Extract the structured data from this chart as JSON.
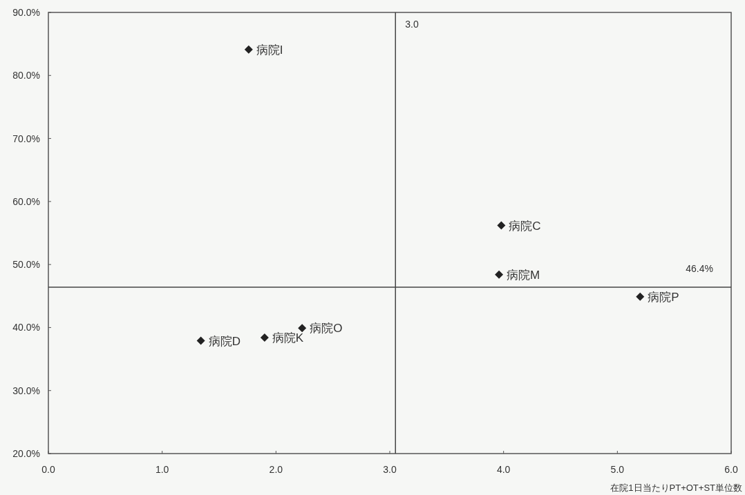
{
  "chart_data": {
    "type": "scatter",
    "xlabel": "在院1日当たりPT+OT+ST単位数",
    "x": [
      1.76,
      3.98,
      3.96,
      5.2,
      2.23,
      1.9,
      1.34
    ],
    "series": [
      {
        "color": "#222222",
        "values": [
          84.1,
          56.2,
          48.4,
          44.9,
          39.9,
          38.4,
          37.9
        ]
      }
    ],
    "marker": "diamond",
    "xlim": [
      0,
      6
    ],
    "ylim": [
      20,
      90
    ],
    "xticks": [
      {
        "value": 0,
        "label": "0.0"
      },
      {
        "value": 1,
        "label": "1.0"
      },
      {
        "value": 2,
        "label": "2.0"
      },
      {
        "value": 3,
        "label": "3.0"
      },
      {
        "value": 4,
        "label": "4.0"
      },
      {
        "value": 5,
        "label": "5.0"
      },
      {
        "value": 6,
        "label": "6.0"
      }
    ],
    "yticks": [
      {
        "value": 20,
        "label": "20.0%"
      },
      {
        "value": 30,
        "label": "30.0%"
      },
      {
        "value": 40,
        "label": "40.0%"
      },
      {
        "value": 50,
        "label": "50.0%"
      },
      {
        "value": 60,
        "label": "60.0%"
      },
      {
        "value": 70,
        "label": "70.0%"
      },
      {
        "value": 80,
        "label": "80.0%"
      },
      {
        "value": 90,
        "label": "90.0%"
      }
    ],
    "ref_lines": [
      {
        "axis": "x",
        "value": 3.05,
        "label": "3.0",
        "color": "#444444"
      },
      {
        "axis": "y",
        "value": 46.4,
        "label": "46.4%",
        "color": "#444444"
      }
    ],
    "annotations": [
      {
        "text": "病院I",
        "x": 1.76,
        "y": 84.1
      },
      {
        "text": "病院C",
        "x": 3.98,
        "y": 56.2
      },
      {
        "text": "病院M",
        "x": 3.96,
        "y": 48.4
      },
      {
        "text": "病院P",
        "x": 5.2,
        "y": 44.9
      },
      {
        "text": "病院O",
        "x": 2.23,
        "y": 39.9
      },
      {
        "text": "病院K",
        "x": 1.9,
        "y": 38.4
      },
      {
        "text": "病院D",
        "x": 1.34,
        "y": 37.9
      }
    ]
  }
}
